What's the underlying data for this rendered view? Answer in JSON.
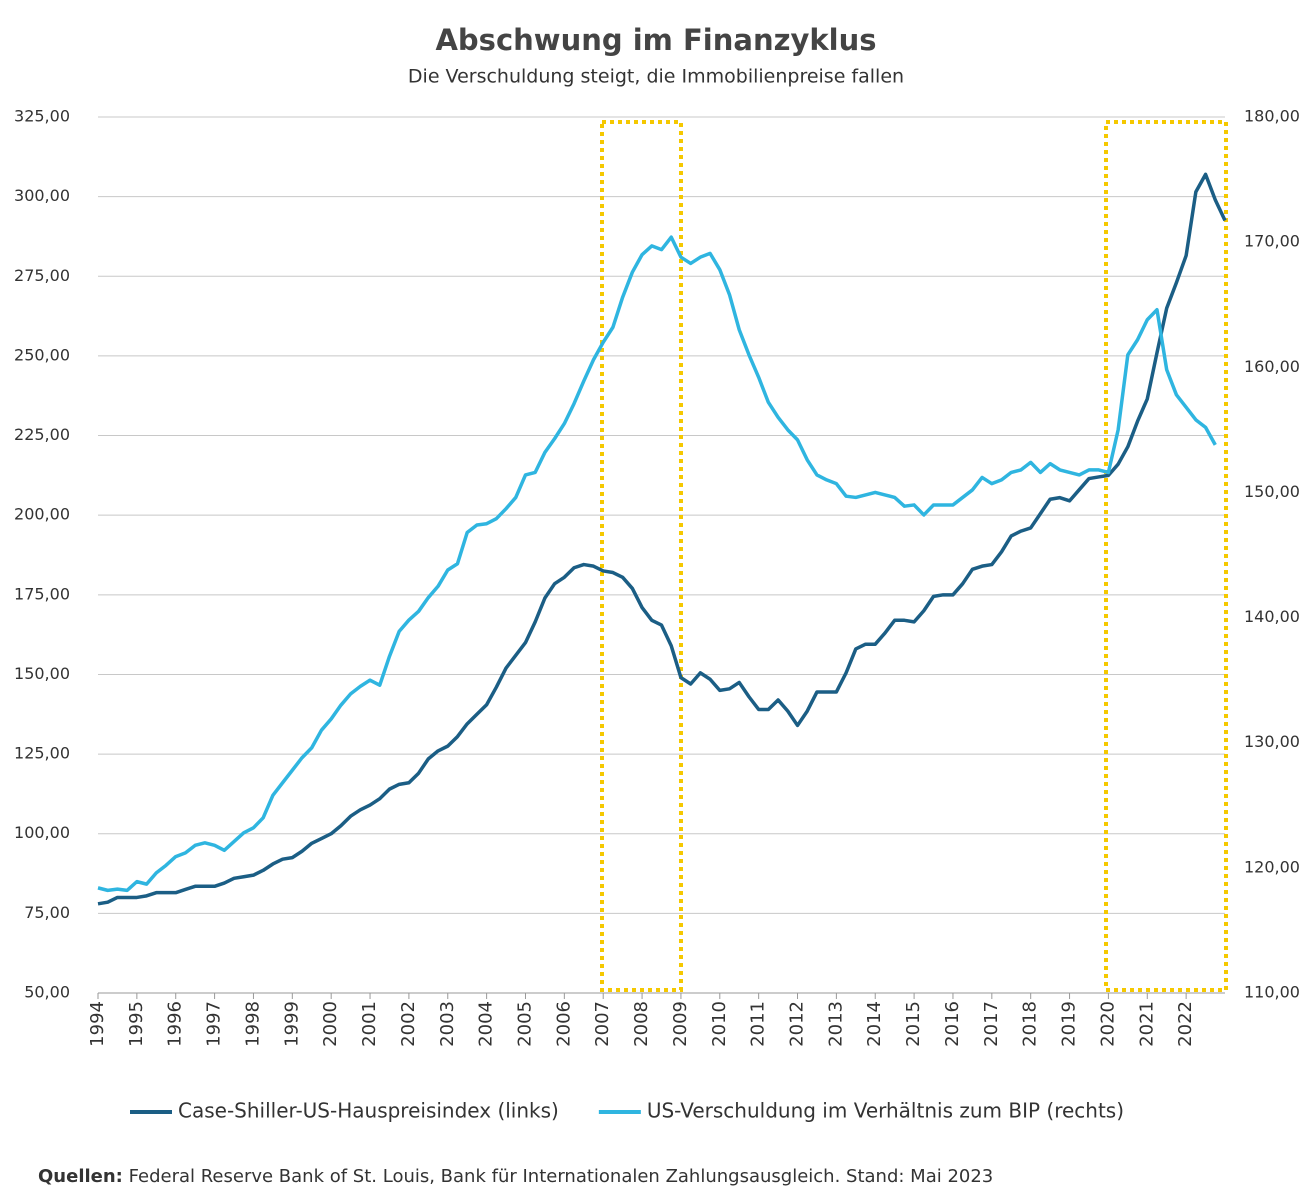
{
  "chart_data": {
    "type": "line",
    "title": "Abschwung im Finanzyklus",
    "subtitle": "Die Verschuldung steigt, die Immobilienpreise fallen",
    "source_label": "Quellen:",
    "source": "Federal Reserve Bank of St. Louis, Bank für Internationalen Zahlungsausgleich. Stand: Mai 2023",
    "categories": [
      "1994",
      null,
      null,
      null,
      "1995",
      null,
      null,
      null,
      "1996",
      null,
      null,
      null,
      "1997",
      null,
      null,
      null,
      "1998",
      null,
      null,
      null,
      "1999",
      null,
      null,
      null,
      "2000",
      null,
      null,
      null,
      "2001",
      null,
      null,
      null,
      "2002",
      null,
      null,
      null,
      "2003",
      null,
      null,
      null,
      "2004",
      null,
      null,
      null,
      "2005",
      null,
      null,
      null,
      "2006",
      null,
      null,
      null,
      "2007",
      null,
      null,
      null,
      "2008",
      null,
      null,
      null,
      "2009",
      null,
      null,
      null,
      "2010",
      null,
      null,
      null,
      "2011",
      null,
      null,
      null,
      "2012",
      null,
      null,
      null,
      "2013",
      null,
      null,
      null,
      "2014",
      null,
      null,
      null,
      "2015",
      null,
      null,
      null,
      "2016",
      null,
      null,
      null,
      "2017",
      null,
      null,
      null,
      "2018",
      null,
      null,
      null,
      "2019",
      null,
      null,
      null,
      "2020",
      null,
      null,
      null,
      "2021",
      null,
      null,
      null,
      "2022",
      null,
      null,
      null,
      null
    ],
    "series": [
      {
        "name": "Case-Shiller-US-Hauspreisindex (links)",
        "color": "#1b5e85",
        "axis": "y",
        "values": [
          78,
          78.5,
          80,
          80,
          80,
          80.5,
          81.5,
          81.5,
          81.5,
          82.5,
          83.5,
          83.5,
          83.5,
          84.5,
          86,
          86.5,
          87,
          88.5,
          90.5,
          92,
          92.5,
          94.5,
          97,
          98.5,
          100,
          102.5,
          105.5,
          107.5,
          109,
          111,
          114,
          115.5,
          116,
          119,
          123.5,
          126,
          127.5,
          130.5,
          134.5,
          137.5,
          140.5,
          146,
          152,
          156,
          160,
          166.5,
          174,
          178.5,
          180.5,
          183.5,
          184.5,
          184,
          182.5,
          182,
          180.5,
          177,
          171,
          167,
          165.5,
          159,
          149,
          147,
          150.5,
          148.5,
          145,
          145.5,
          147.5,
          143,
          139,
          139,
          142,
          138.5,
          134,
          138.5,
          144.5,
          144.5,
          144.5,
          150.5,
          158,
          159.5,
          159.5,
          163,
          167,
          167,
          166.5,
          170,
          174.5,
          175,
          175,
          178.5,
          183,
          184,
          184.5,
          188.5,
          193.5,
          195,
          196,
          200.5,
          205,
          205.5,
          204.5,
          208,
          211.5,
          212,
          212.5,
          216,
          221.5,
          229.5,
          236.5,
          251,
          265,
          273,
          281.5,
          301.5,
          307,
          299,
          292.5
        ]
      },
      {
        "name": "US-Verschuldung im Verhältnis zum BIP (rechts)",
        "color": "#2fb5e0",
        "axis": "y2",
        "values": [
          118.4,
          118.2,
          118.3,
          118.2,
          118.9,
          118.7,
          119.6,
          120.2,
          120.9,
          121.2,
          121.8,
          122.0,
          121.8,
          121.4,
          122.1,
          122.8,
          123.2,
          124.0,
          125.8,
          126.8,
          127.8,
          128.8,
          129.6,
          131.0,
          131.9,
          133.0,
          133.9,
          134.5,
          135.0,
          134.6,
          136.9,
          138.9,
          139.8,
          140.5,
          141.6,
          142.5,
          143.8,
          144.3,
          146.8,
          147.4,
          147.5,
          147.9,
          148.7,
          149.6,
          151.4,
          151.6,
          153.2,
          154.3,
          155.5,
          157.1,
          158.9,
          160.6,
          162.0,
          163.2,
          165.6,
          167.6,
          169.0,
          169.7,
          169.4,
          170.4,
          168.8,
          168.3,
          168.8,
          169.1,
          167.8,
          165.8,
          163.0,
          161.0,
          159.2,
          157.2,
          156.0,
          155.0,
          154.2,
          152.6,
          151.4,
          151.0,
          150.7,
          149.7,
          149.6,
          149.8,
          150.0,
          149.8,
          149.6,
          148.9,
          149.0,
          148.2,
          149.0,
          149.0,
          149.0,
          149.6,
          150.2,
          151.2,
          150.7,
          151.0,
          151.6,
          151.8,
          152.4,
          151.6,
          152.3,
          151.8,
          151.6,
          151.4,
          151.8,
          151.8,
          151.6,
          155.0,
          161.0,
          162.2,
          163.8,
          164.6,
          159.8,
          157.8,
          156.8,
          155.8,
          155.2,
          153.8,
          null
        ]
      }
    ],
    "ylim": [
      50,
      325
    ],
    "yticks": [
      {
        "value": 50,
        "label": "50,00"
      },
      {
        "value": 75,
        "label": "75,00"
      },
      {
        "value": 100,
        "label": "100,00"
      },
      {
        "value": 125,
        "label": "125,00"
      },
      {
        "value": 150,
        "label": "150,00"
      },
      {
        "value": 175,
        "label": "175,00"
      },
      {
        "value": 200,
        "label": "200,00"
      },
      {
        "value": 225,
        "label": "225,00"
      },
      {
        "value": 250,
        "label": "250,00"
      },
      {
        "value": 275,
        "label": "275,00"
      },
      {
        "value": 300,
        "label": "300,00"
      },
      {
        "value": 325,
        "label": "325,00"
      }
    ],
    "y2lim": [
      110,
      180
    ],
    "y2ticks": [
      {
        "value": 110,
        "label": "110,00"
      },
      {
        "value": 120,
        "label": "120,00"
      },
      {
        "value": 130,
        "label": "130,00"
      },
      {
        "value": 140,
        "label": "140,00"
      },
      {
        "value": 150,
        "label": "150,00"
      },
      {
        "value": 160,
        "label": "160,00"
      },
      {
        "value": 170,
        "label": "170,00"
      },
      {
        "value": 180,
        "label": "180,00"
      }
    ],
    "grid": true
  }
}
